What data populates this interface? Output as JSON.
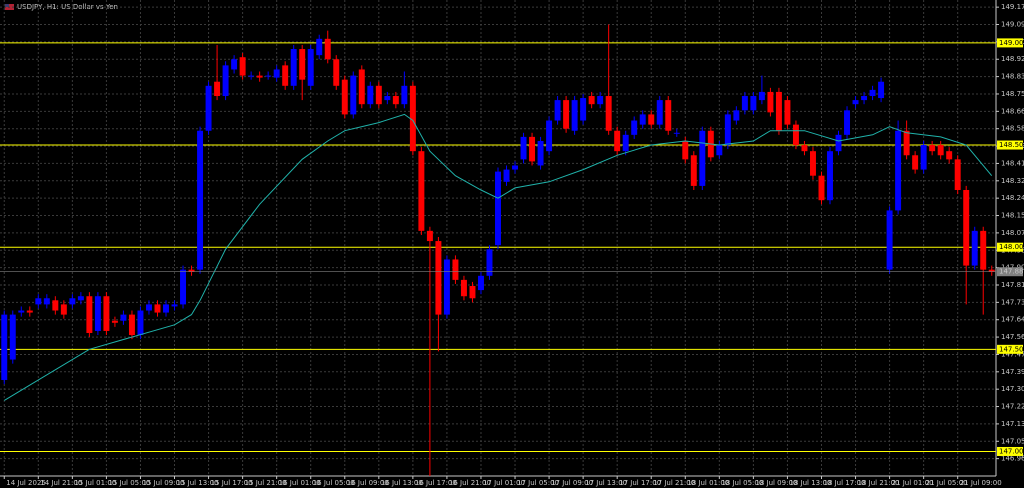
{
  "chart_data": {
    "type": "candlestick",
    "title": "USDJPY, H1: US Dollar vs Yen",
    "ylim": [
      146.88,
      149.21
    ],
    "yticks": [
      149.175,
      {
        "value": 149.09,
        "label": "149.090"
      },
      149.005,
      {
        "value": 148.92,
        "label": "148.920"
      },
      148.835,
      {
        "value": 148.75,
        "label": "148.750"
      },
      148.665,
      148.58,
      148.495,
      {
        "value": 148.41,
        "label": "148.410"
      },
      148.325,
      {
        "value": 148.24,
        "label": "148.240"
      },
      148.155,
      {
        "value": 148.07,
        "label": "148.070"
      },
      147.985,
      {
        "value": 147.9,
        "label": "147.900"
      },
      147.815,
      {
        "value": 147.73,
        "label": "147.730"
      },
      147.645,
      {
        "value": 147.56,
        "label": "147.560"
      },
      147.475,
      {
        "value": 147.39,
        "label": "147.390"
      },
      147.305,
      {
        "value": 147.22,
        "label": "147.220"
      },
      147.135,
      {
        "value": 147.05,
        "label": "147.050"
      },
      146.965
    ],
    "grid": true,
    "background": "#000000",
    "bull_color": "#0000ff",
    "bear_color": "#ff0000",
    "levels_color": "#ffff00",
    "levels": [
      {
        "value": 149.0,
        "label": "149.000"
      },
      {
        "value": 148.5,
        "label": "148.500"
      },
      {
        "value": 148.0,
        "label": "148.000"
      },
      {
        "value": 147.5,
        "label": "147.500"
      },
      {
        "value": 147.0,
        "label": "147.000"
      }
    ],
    "bid": {
      "value": 147.88,
      "label": "147.880"
    },
    "categories": [
      "14 Jul 2025",
      null,
      null,
      null,
      "14 Jul 21:00",
      null,
      null,
      null,
      "15 Jul 01:00",
      null,
      null,
      null,
      "15 Jul 05:00",
      null,
      null,
      null,
      "15 Jul 09:00",
      null,
      null,
      null,
      "15 Jul 13:00",
      null,
      null,
      null,
      "15 Jul 17:00",
      null,
      null,
      null,
      "15 Jul 21:00",
      null,
      null,
      null,
      "16 Jul 01:00",
      null,
      null,
      null,
      "16 Jul 05:00",
      null,
      null,
      null,
      "16 Jul 09:00",
      null,
      null,
      null,
      "16 Jul 13:00",
      null,
      null,
      null,
      "16 Jul 17:00",
      null,
      null,
      null,
      "16 Jul 21:00",
      null,
      null,
      null,
      "17 Jul 01:00",
      null,
      null,
      null,
      "17 Jul 05:00",
      null,
      null,
      null,
      "17 Jul 09:00",
      null,
      null,
      null,
      "17 Jul 13:00",
      null,
      null,
      null,
      "17 Jul 17:00",
      null,
      null,
      null,
      "17 Jul 21:00",
      null,
      null,
      null,
      "18 Jul 01:00",
      null,
      null,
      null,
      "18 Jul 05:00",
      null,
      null,
      null,
      "18 Jul 09:00",
      null,
      null,
      null,
      "18 Jul 13:00",
      null,
      null,
      null,
      "18 Jul 17:00",
      null,
      null,
      null,
      "18 Jul 21:00",
      null,
      null,
      null,
      "21 Jul 01:00",
      null,
      null,
      null,
      "21 Jul 05:00",
      null,
      null,
      null,
      "21 Jul 09:00",
      null,
      null,
      null,
      null
    ],
    "candles": [
      [
        147.35,
        147.69,
        147.33,
        147.67
      ],
      [
        147.45,
        147.69,
        147.43,
        147.67
      ],
      [
        147.68,
        147.71,
        147.66,
        147.69
      ],
      [
        147.69,
        147.71,
        147.66,
        147.68
      ],
      [
        147.72,
        147.77,
        147.7,
        147.75
      ],
      [
        147.72,
        147.77,
        147.7,
        147.75
      ],
      [
        147.74,
        147.76,
        147.67,
        147.69
      ],
      [
        147.72,
        147.74,
        147.65,
        147.67
      ],
      [
        147.72,
        147.77,
        147.7,
        147.75
      ],
      [
        147.74,
        147.78,
        147.72,
        147.76
      ],
      [
        147.76,
        147.78,
        147.56,
        147.58
      ],
      [
        147.59,
        147.78,
        147.57,
        147.76
      ],
      [
        147.76,
        147.78,
        147.57,
        147.59
      ],
      [
        147.64,
        147.66,
        147.61,
        147.63
      ],
      [
        147.64,
        147.69,
        147.62,
        147.67
      ],
      [
        147.67,
        147.69,
        147.55,
        147.57
      ],
      [
        147.57,
        147.71,
        147.55,
        147.69
      ],
      [
        147.69,
        147.74,
        147.67,
        147.72
      ],
      [
        147.72,
        147.74,
        147.66,
        147.68
      ],
      [
        147.68,
        147.74,
        147.66,
        147.72
      ],
      [
        147.71,
        147.74,
        147.69,
        147.72
      ],
      [
        147.72,
        147.91,
        147.7,
        147.89
      ],
      [
        147.89,
        147.91,
        147.86,
        147.88
      ],
      [
        147.89,
        148.59,
        147.87,
        148.57
      ],
      [
        148.57,
        148.81,
        148.55,
        148.79
      ],
      [
        148.81,
        148.99,
        148.72,
        148.74
      ],
      [
        148.74,
        148.91,
        148.72,
        148.89
      ],
      [
        148.87,
        148.94,
        148.85,
        148.92
      ],
      [
        148.93,
        148.95,
        148.82,
        148.84
      ],
      [
        148.84,
        148.86,
        148.82,
        148.84
      ],
      [
        148.84,
        148.86,
        148.81,
        148.83
      ],
      [
        148.84,
        148.86,
        148.82,
        148.84
      ],
      [
        148.83,
        148.89,
        148.81,
        148.87
      ],
      [
        148.89,
        148.91,
        148.77,
        148.79
      ],
      [
        148.79,
        148.99,
        148.77,
        148.97
      ],
      [
        148.97,
        148.99,
        148.72,
        148.82
      ],
      [
        148.79,
        148.99,
        148.77,
        148.97
      ],
      [
        148.94,
        149.04,
        148.92,
        149.02
      ],
      [
        149.02,
        149.06,
        148.9,
        148.92
      ],
      [
        148.92,
        148.94,
        148.77,
        148.79
      ],
      [
        148.82,
        148.84,
        148.63,
        148.65
      ],
      [
        148.65,
        148.86,
        148.63,
        148.84
      ],
      [
        148.87,
        148.89,
        148.68,
        148.7
      ],
      [
        148.7,
        148.81,
        148.68,
        148.79
      ],
      [
        148.79,
        148.81,
        148.68,
        148.7
      ],
      [
        148.72,
        148.76,
        148.7,
        148.74
      ],
      [
        148.74,
        148.76,
        148.68,
        148.7
      ],
      [
        148.7,
        148.86,
        148.68,
        148.79
      ],
      [
        148.79,
        148.81,
        148.45,
        148.47
      ],
      [
        148.47,
        148.49,
        148.06,
        148.08
      ],
      [
        148.08,
        148.1,
        146.88,
        148.03
      ],
      [
        148.03,
        148.05,
        147.49,
        147.67
      ],
      [
        147.67,
        147.96,
        147.65,
        147.94
      ],
      [
        147.94,
        147.96,
        147.82,
        147.84
      ],
      [
        147.84,
        147.86,
        147.74,
        147.76
      ],
      [
        147.81,
        147.83,
        147.73,
        147.75
      ],
      [
        147.79,
        147.88,
        147.77,
        147.86
      ],
      [
        147.86,
        148.01,
        147.84,
        147.99
      ],
      [
        148.01,
        148.39,
        147.99,
        148.37
      ],
      [
        148.32,
        148.4,
        148.3,
        148.38
      ],
      [
        148.38,
        148.42,
        148.36,
        148.4
      ],
      [
        148.43,
        148.56,
        148.41,
        148.54
      ],
      [
        148.54,
        148.56,
        148.4,
        148.42
      ],
      [
        148.4,
        148.54,
        148.38,
        148.52
      ],
      [
        148.47,
        148.64,
        148.45,
        148.62
      ],
      [
        148.62,
        148.74,
        148.6,
        148.72
      ],
      [
        148.72,
        148.74,
        148.56,
        148.58
      ],
      [
        148.57,
        148.74,
        148.55,
        148.72
      ],
      [
        148.62,
        148.75,
        148.6,
        148.73
      ],
      [
        148.74,
        148.76,
        148.68,
        148.7
      ],
      [
        148.7,
        148.76,
        148.68,
        148.74
      ],
      [
        148.74,
        149.09,
        148.55,
        148.57
      ],
      [
        148.57,
        148.59,
        148.45,
        148.47
      ],
      [
        148.47,
        148.57,
        148.45,
        148.55
      ],
      [
        148.55,
        148.64,
        148.53,
        148.62
      ],
      [
        148.6,
        148.67,
        148.58,
        148.65
      ],
      [
        148.65,
        148.67,
        148.58,
        148.6
      ],
      [
        148.6,
        148.74,
        148.58,
        148.72
      ],
      [
        148.72,
        148.74,
        148.55,
        148.57
      ],
      [
        148.56,
        148.58,
        148.54,
        148.56
      ],
      [
        148.52,
        148.54,
        148.41,
        148.43
      ],
      [
        148.45,
        148.47,
        148.28,
        148.3
      ],
      [
        148.3,
        148.59,
        148.28,
        148.57
      ],
      [
        148.57,
        148.59,
        148.42,
        148.44
      ],
      [
        148.45,
        148.52,
        148.43,
        148.5
      ],
      [
        148.5,
        148.67,
        148.48,
        148.65
      ],
      [
        148.62,
        148.69,
        148.6,
        148.67
      ],
      [
        148.67,
        148.76,
        148.65,
        148.74
      ],
      [
        148.67,
        148.76,
        148.65,
        148.74
      ],
      [
        148.72,
        148.84,
        148.7,
        148.76
      ],
      [
        148.76,
        148.78,
        148.64,
        148.66
      ],
      [
        148.76,
        148.78,
        148.55,
        148.57
      ],
      [
        148.72,
        148.74,
        148.58,
        148.6
      ],
      [
        148.6,
        148.62,
        148.48,
        148.5
      ],
      [
        148.5,
        148.52,
        148.45,
        148.47
      ],
      [
        148.47,
        148.49,
        148.33,
        148.35
      ],
      [
        148.35,
        148.37,
        148.21,
        148.23
      ],
      [
        148.23,
        148.49,
        148.21,
        148.47
      ],
      [
        148.47,
        148.57,
        148.45,
        148.55
      ],
      [
        148.55,
        148.69,
        148.53,
        148.67
      ],
      [
        148.7,
        148.74,
        148.68,
        148.72
      ],
      [
        148.72,
        148.76,
        148.7,
        148.74
      ],
      [
        148.74,
        148.79,
        148.72,
        148.77
      ],
      [
        148.73,
        148.83,
        148.71,
        148.81
      ],
      [
        147.89,
        148.2,
        147.87,
        148.18
      ],
      [
        148.18,
        148.62,
        148.16,
        148.57
      ],
      [
        148.57,
        148.62,
        148.43,
        148.45
      ],
      [
        148.45,
        148.47,
        148.36,
        148.38
      ],
      [
        148.38,
        148.52,
        148.36,
        148.5
      ],
      [
        148.5,
        148.52,
        148.45,
        148.47
      ],
      [
        148.5,
        148.52,
        148.43,
        148.45
      ],
      [
        148.47,
        148.49,
        148.41,
        148.43
      ],
      [
        148.43,
        148.45,
        148.26,
        148.28
      ],
      [
        148.28,
        148.3,
        147.72,
        147.91
      ],
      [
        147.91,
        148.1,
        147.89,
        148.08
      ],
      [
        148.08,
        148.1,
        147.67,
        147.89
      ],
      [
        147.89,
        147.91,
        147.86,
        147.88
      ]
    ],
    "ma": {
      "color": "#20b2aa",
      "x": [
        0,
        10,
        20,
        22,
        23,
        26,
        30,
        35,
        38,
        40,
        44,
        47,
        48,
        50,
        53,
        56,
        58,
        60,
        64,
        68,
        72,
        76,
        80,
        84,
        88,
        90,
        94,
        98,
        102,
        104,
        106,
        110,
        113,
        116
      ],
      "values": [
        147.25,
        147.5,
        147.62,
        147.67,
        147.74,
        147.99,
        148.21,
        148.43,
        148.52,
        148.57,
        148.61,
        148.65,
        148.62,
        148.47,
        148.35,
        148.28,
        148.24,
        148.29,
        148.32,
        148.38,
        148.45,
        148.5,
        148.52,
        148.5,
        148.52,
        148.57,
        148.57,
        148.52,
        148.55,
        148.59,
        148.56,
        148.54,
        148.5,
        148.35
      ]
    }
  }
}
